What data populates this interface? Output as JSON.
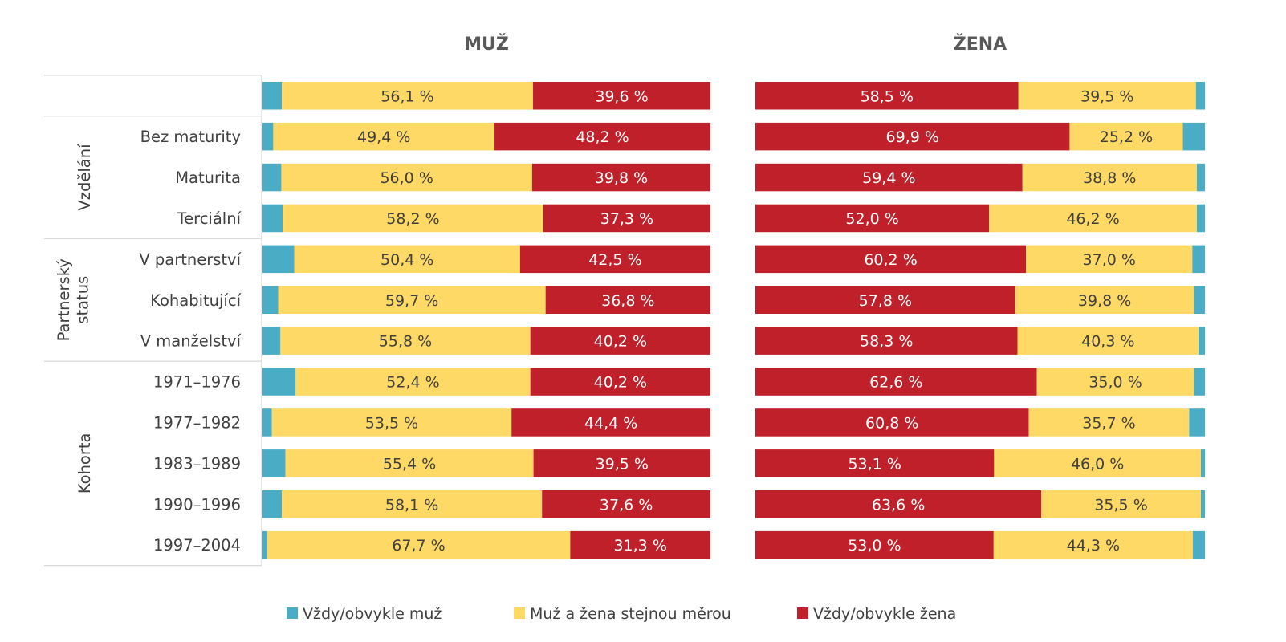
{
  "chart_data": {
    "type": "bar",
    "orientation": "horizontal",
    "stacked": "100%",
    "colors": {
      "muz": "#4bacc6",
      "oba": "#ffd966",
      "zena": "#c0202a",
      "label_on_red": "#ffffff",
      "label_on_yellow": "#404040"
    },
    "legend": {
      "placement": "bottom",
      "items": [
        {
          "key": "muz",
          "label": "Vždy/obvykle muž"
        },
        {
          "key": "oba",
          "label": "Muž a žena stejnou měrou"
        },
        {
          "key": "zena",
          "label": "Vždy/obvykle žena"
        }
      ]
    },
    "groups": [
      {
        "label": "",
        "rows": [
          0
        ]
      },
      {
        "label": "Vzdělání",
        "rows": [
          1,
          2,
          3
        ]
      },
      {
        "label_lines": [
          "Partnerský",
          "status"
        ],
        "rows": [
          4,
          5,
          6
        ]
      },
      {
        "label": "Kohorta",
        "rows": [
          7,
          8,
          9,
          10,
          11
        ]
      }
    ],
    "categories": [
      "",
      "Bez maturity",
      "Maturita",
      "Terciální",
      "V partnerství",
      "Kohabitující",
      "V manželství",
      "1971–1976",
      "1977–1982",
      "1983–1989",
      "1990–1996",
      "1997–2004"
    ],
    "panels": [
      {
        "title": "MUŽ",
        "order": [
          "muz",
          "oba",
          "zena"
        ],
        "series": [
          {
            "key": "muz",
            "name": "Vždy/obvykle muž",
            "values": [
              4.3,
              2.4,
              4.2,
              4.5,
              7.1,
              3.5,
              4.0,
              7.4,
              2.1,
              5.1,
              4.3,
              1.0
            ]
          },
          {
            "key": "oba",
            "name": "Muž a žena stejnou měrou",
            "values": [
              56.1,
              49.4,
              56.0,
              58.2,
              50.4,
              59.7,
              55.8,
              52.4,
              53.5,
              55.4,
              58.1,
              67.7
            ]
          },
          {
            "key": "zena",
            "name": "Vždy/obvykle žena",
            "values": [
              39.6,
              48.2,
              39.8,
              37.3,
              42.5,
              36.8,
              40.2,
              40.2,
              44.4,
              39.5,
              37.6,
              31.3
            ]
          }
        ],
        "labels": {
          "oba": [
            "56,1 %",
            "49,4 %",
            "56,0 %",
            "58,2 %",
            "50,4 %",
            "59,7 %",
            "55,8 %",
            "52,4 %",
            "53,5 %",
            "55,4 %",
            "58,1 %",
            "67,7 %"
          ],
          "zena": [
            "39,6 %",
            "48,2 %",
            "39,8 %",
            "37,3 %",
            "42,5 %",
            "36,8 %",
            "40,2 %",
            "40,2 %",
            "44,4 %",
            "39,5 %",
            "37,6 %",
            "31,3 %"
          ]
        }
      },
      {
        "title": "ŽENA",
        "order": [
          "zena",
          "oba",
          "muz"
        ],
        "series": [
          {
            "key": "zena",
            "name": "Vždy/obvykle žena",
            "values": [
              58.5,
              69.9,
              59.4,
              52.0,
              60.2,
              57.8,
              58.3,
              62.6,
              60.8,
              53.1,
              63.6,
              53.0
            ]
          },
          {
            "key": "oba",
            "name": "Muž a žena stejnou měrou",
            "values": [
              39.5,
              25.2,
              38.8,
              46.2,
              37.0,
              39.8,
              40.3,
              35.0,
              35.7,
              46.0,
              35.5,
              44.3
            ]
          },
          {
            "key": "muz",
            "name": "Vždy/obvykle muž",
            "values": [
              2.0,
              4.9,
              1.8,
              1.8,
              2.8,
              2.4,
              1.4,
              2.4,
              3.5,
              0.9,
              0.9,
              2.7
            ]
          }
        ],
        "labels": {
          "zena": [
            "58,5 %",
            "69,9 %",
            "59,4 %",
            "52,0 %",
            "60,2 %",
            "57,8 %",
            "58,3 %",
            "62,6 %",
            "60,8 %",
            "53,1 %",
            "63,6 %",
            "53,0 %"
          ],
          "oba": [
            "39,5 %",
            "25,2 %",
            "38,8 %",
            "46,2 %",
            "37,0 %",
            "39,8 %",
            "40,3 %",
            "35,0 %",
            "35,7 %",
            "46,0 %",
            "35,5 %",
            "44,3 %"
          ]
        }
      }
    ]
  }
}
